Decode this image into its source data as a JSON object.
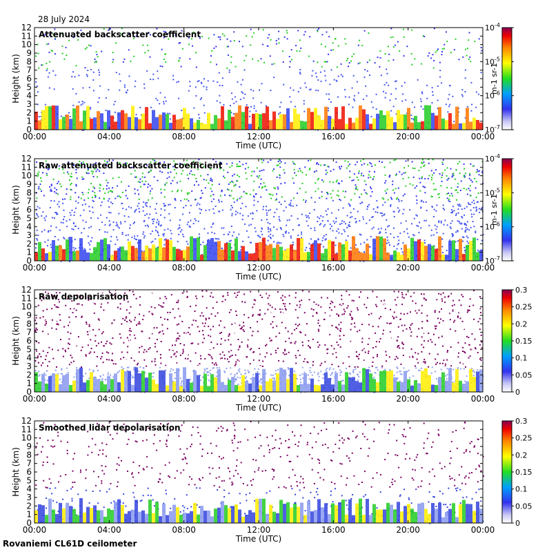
{
  "date_label": "28 July 2024",
  "footer_label": "Rovaniemi CL61D ceilometer",
  "chart_data": [
    {
      "type": "heatmap",
      "title": "Attenuated backscatter coefficient",
      "xlabel": "Time (UTC)",
      "ylabel": "Height (km)",
      "x_ticks": [
        "00:00",
        "04:00",
        "08:00",
        "12:00",
        "16:00",
        "20:00",
        "00:00"
      ],
      "y_ticks": [
        "0",
        "1",
        "2",
        "3",
        "4",
        "5",
        "6",
        "7",
        "8",
        "9",
        "10",
        "11",
        "12"
      ],
      "ylim": [
        0,
        12
      ],
      "colorbar": {
        "scale": "log",
        "range": [
          1e-07,
          0.0001
        ],
        "unit": "m-1 sr-1",
        "ticks": [
          "10-7",
          "10-6",
          "10-5",
          "10-4"
        ]
      },
      "grid": false
    },
    {
      "type": "heatmap",
      "title": "Raw attenuated backscatter coefficient",
      "xlabel": "Time (UTC)",
      "ylabel": "Height (km)",
      "x_ticks": [
        "00:00",
        "04:00",
        "08:00",
        "12:00",
        "16:00",
        "20:00",
        "00:00"
      ],
      "y_ticks": [
        "0",
        "1",
        "2",
        "3",
        "4",
        "5",
        "6",
        "7",
        "8",
        "9",
        "10",
        "11",
        "12"
      ],
      "ylim": [
        0,
        12
      ],
      "colorbar": {
        "scale": "log",
        "range": [
          1e-07,
          0.0001
        ],
        "unit": "m-1 sr-1",
        "ticks": [
          "10-7",
          "10-6",
          "10-5",
          "10-4"
        ]
      },
      "grid": false
    },
    {
      "type": "heatmap",
      "title": "Raw depolarisation",
      "xlabel": "Time (UTC)",
      "ylabel": "Height (km)",
      "x_ticks": [
        "00:00",
        "04:00",
        "08:00",
        "12:00",
        "16:00",
        "20:00",
        "00:00"
      ],
      "y_ticks": [
        "0",
        "1",
        "2",
        "3",
        "4",
        "5",
        "6",
        "7",
        "8",
        "9",
        "10",
        "11",
        "12"
      ],
      "ylim": [
        0,
        12
      ],
      "colorbar": {
        "scale": "linear",
        "range": [
          0,
          0.3
        ],
        "unit": "",
        "ticks": [
          "0",
          "0.05",
          "0.1",
          "0.15",
          "0.2",
          "0.25",
          "0.3"
        ]
      },
      "grid": false
    },
    {
      "type": "heatmap",
      "title": "Smoothed lidar depolarisation",
      "xlabel": "Time (UTC)",
      "ylabel": "Height (km)",
      "x_ticks": [
        "00:00",
        "04:00",
        "08:00",
        "12:00",
        "16:00",
        "20:00",
        "00:00"
      ],
      "y_ticks": [
        "0",
        "1",
        "2",
        "3",
        "4",
        "5",
        "6",
        "7",
        "8",
        "9",
        "10",
        "11",
        "12"
      ],
      "ylim": [
        0,
        12
      ],
      "colorbar": {
        "scale": "linear",
        "range": [
          0,
          0.3
        ],
        "unit": "",
        "ticks": [
          "0",
          "0.05",
          "0.1",
          "0.15",
          "0.2",
          "0.25",
          "0.3"
        ]
      },
      "grid": false
    }
  ]
}
